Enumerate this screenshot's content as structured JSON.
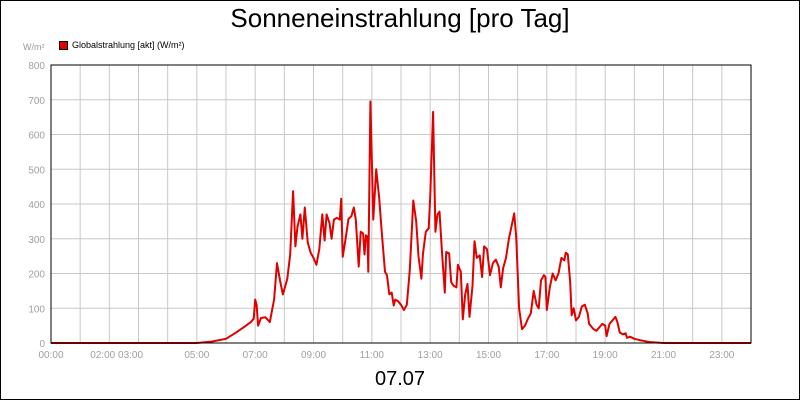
{
  "chart_data": {
    "type": "line",
    "title": "Sonneneinstrahlung [pro Tag]",
    "unit_label": "W/m²",
    "date_label": "07.07",
    "legend": [
      {
        "name": "Globalstrahlung [akt] (W/m²)",
        "color": "#e00000"
      }
    ],
    "xlim": [
      0,
      24
    ],
    "ylim": [
      0,
      800
    ],
    "y_ticks": [
      0,
      100,
      200,
      300,
      400,
      500,
      600,
      700,
      800
    ],
    "x_tick_labels": [
      {
        "t": 0,
        "label": "00:00"
      },
      {
        "t": 2.25,
        "label": "02:00 03:00"
      },
      {
        "t": 5,
        "label": "05:00"
      },
      {
        "t": 7,
        "label": "07:00"
      },
      {
        "t": 9,
        "label": "09:00"
      },
      {
        "t": 11,
        "label": "11:00"
      },
      {
        "t": 13,
        "label": "13:00"
      },
      {
        "t": 15,
        "label": "15:00"
      },
      {
        "t": 17,
        "label": "17:00"
      },
      {
        "t": 19,
        "label": "19:00"
      },
      {
        "t": 21,
        "label": "21:00"
      },
      {
        "t": 23,
        "label": "23:00"
      }
    ],
    "grid": true,
    "series": [
      {
        "name": "Globalstrahlung [akt] (W/m²)",
        "color": "#e00000",
        "points": [
          [
            0,
            0
          ],
          [
            5.0,
            0
          ],
          [
            5.5,
            4
          ],
          [
            6.0,
            12
          ],
          [
            6.3,
            28
          ],
          [
            6.6,
            45
          ],
          [
            6.85,
            60
          ],
          [
            6.95,
            70
          ],
          [
            7.0,
            125
          ],
          [
            7.05,
            110
          ],
          [
            7.1,
            50
          ],
          [
            7.2,
            72
          ],
          [
            7.35,
            74
          ],
          [
            7.45,
            65
          ],
          [
            7.5,
            60
          ],
          [
            7.65,
            125
          ],
          [
            7.75,
            230
          ],
          [
            7.85,
            180
          ],
          [
            7.95,
            140
          ],
          [
            8.1,
            185
          ],
          [
            8.2,
            255
          ],
          [
            8.3,
            437
          ],
          [
            8.38,
            278
          ],
          [
            8.45,
            335
          ],
          [
            8.55,
            370
          ],
          [
            8.62,
            300
          ],
          [
            8.7,
            390
          ],
          [
            8.8,
            290
          ],
          [
            8.9,
            260
          ],
          [
            9.0,
            245
          ],
          [
            9.1,
            225
          ],
          [
            9.2,
            270
          ],
          [
            9.3,
            370
          ],
          [
            9.38,
            295
          ],
          [
            9.45,
            370
          ],
          [
            9.55,
            345
          ],
          [
            9.62,
            300
          ],
          [
            9.7,
            355
          ],
          [
            9.8,
            360
          ],
          [
            9.9,
            355
          ],
          [
            9.95,
            415
          ],
          [
            10.0,
            248
          ],
          [
            10.1,
            300
          ],
          [
            10.2,
            357
          ],
          [
            10.3,
            365
          ],
          [
            10.38,
            390
          ],
          [
            10.45,
            355
          ],
          [
            10.55,
            220
          ],
          [
            10.62,
            320
          ],
          [
            10.7,
            315
          ],
          [
            10.75,
            255
          ],
          [
            10.8,
            310
          ],
          [
            10.85,
            305
          ],
          [
            10.88,
            205
          ],
          [
            10.95,
            695
          ],
          [
            11.05,
            355
          ],
          [
            11.15,
            500
          ],
          [
            11.25,
            420
          ],
          [
            11.35,
            310
          ],
          [
            11.45,
            205
          ],
          [
            11.52,
            195
          ],
          [
            11.6,
            140
          ],
          [
            11.68,
            145
          ],
          [
            11.75,
            108
          ],
          [
            11.8,
            125
          ],
          [
            11.9,
            120
          ],
          [
            12.0,
            110
          ],
          [
            12.1,
            95
          ],
          [
            12.2,
            110
          ],
          [
            12.3,
            210
          ],
          [
            12.42,
            410
          ],
          [
            12.52,
            350
          ],
          [
            12.6,
            250
          ],
          [
            12.7,
            185
          ],
          [
            12.75,
            255
          ],
          [
            12.85,
            320
          ],
          [
            12.95,
            330
          ],
          [
            13.0,
            420
          ],
          [
            13.1,
            665
          ],
          [
            13.18,
            320
          ],
          [
            13.25,
            370
          ],
          [
            13.32,
            378
          ],
          [
            13.4,
            270
          ],
          [
            13.5,
            145
          ],
          [
            13.55,
            262
          ],
          [
            13.65,
            258
          ],
          [
            13.72,
            175
          ],
          [
            13.8,
            165
          ],
          [
            13.9,
            160
          ],
          [
            13.95,
            225
          ],
          [
            14.05,
            205
          ],
          [
            14.12,
            68
          ],
          [
            14.2,
            140
          ],
          [
            14.28,
            170
          ],
          [
            14.35,
            75
          ],
          [
            14.45,
            165
          ],
          [
            14.52,
            293
          ],
          [
            14.6,
            245
          ],
          [
            14.7,
            252
          ],
          [
            14.78,
            190
          ],
          [
            14.85,
            278
          ],
          [
            14.95,
            270
          ],
          [
            15.05,
            195
          ],
          [
            15.15,
            230
          ],
          [
            15.25,
            240
          ],
          [
            15.35,
            220
          ],
          [
            15.42,
            160
          ],
          [
            15.5,
            215
          ],
          [
            15.6,
            245
          ],
          [
            15.7,
            300
          ],
          [
            15.8,
            340
          ],
          [
            15.88,
            373
          ],
          [
            15.95,
            305
          ],
          [
            16.05,
            100
          ],
          [
            16.15,
            40
          ],
          [
            16.25,
            50
          ],
          [
            16.35,
            70
          ],
          [
            16.45,
            85
          ],
          [
            16.55,
            150
          ],
          [
            16.65,
            110
          ],
          [
            16.72,
            100
          ],
          [
            16.8,
            180
          ],
          [
            16.9,
            195
          ],
          [
            16.95,
            190
          ],
          [
            17.0,
            95
          ],
          [
            17.1,
            160
          ],
          [
            17.2,
            200
          ],
          [
            17.3,
            180
          ],
          [
            17.4,
            200
          ],
          [
            17.5,
            245
          ],
          [
            17.6,
            238
          ],
          [
            17.65,
            260
          ],
          [
            17.72,
            255
          ],
          [
            17.8,
            175
          ],
          [
            17.85,
            80
          ],
          [
            17.92,
            100
          ],
          [
            18.0,
            65
          ],
          [
            18.1,
            75
          ],
          [
            18.2,
            105
          ],
          [
            18.3,
            110
          ],
          [
            18.4,
            85
          ],
          [
            18.45,
            55
          ],
          [
            18.6,
            40
          ],
          [
            18.7,
            35
          ],
          [
            18.8,
            45
          ],
          [
            18.9,
            55
          ],
          [
            19.0,
            50
          ],
          [
            19.05,
            20
          ],
          [
            19.15,
            55
          ],
          [
            19.25,
            65
          ],
          [
            19.35,
            75
          ],
          [
            19.42,
            60
          ],
          [
            19.5,
            30
          ],
          [
            19.6,
            25
          ],
          [
            19.7,
            28
          ],
          [
            19.75,
            15
          ],
          [
            19.85,
            18
          ],
          [
            20.0,
            12
          ],
          [
            20.2,
            8
          ],
          [
            20.5,
            3
          ],
          [
            21.0,
            0
          ],
          [
            24,
            0
          ]
        ]
      }
    ]
  }
}
